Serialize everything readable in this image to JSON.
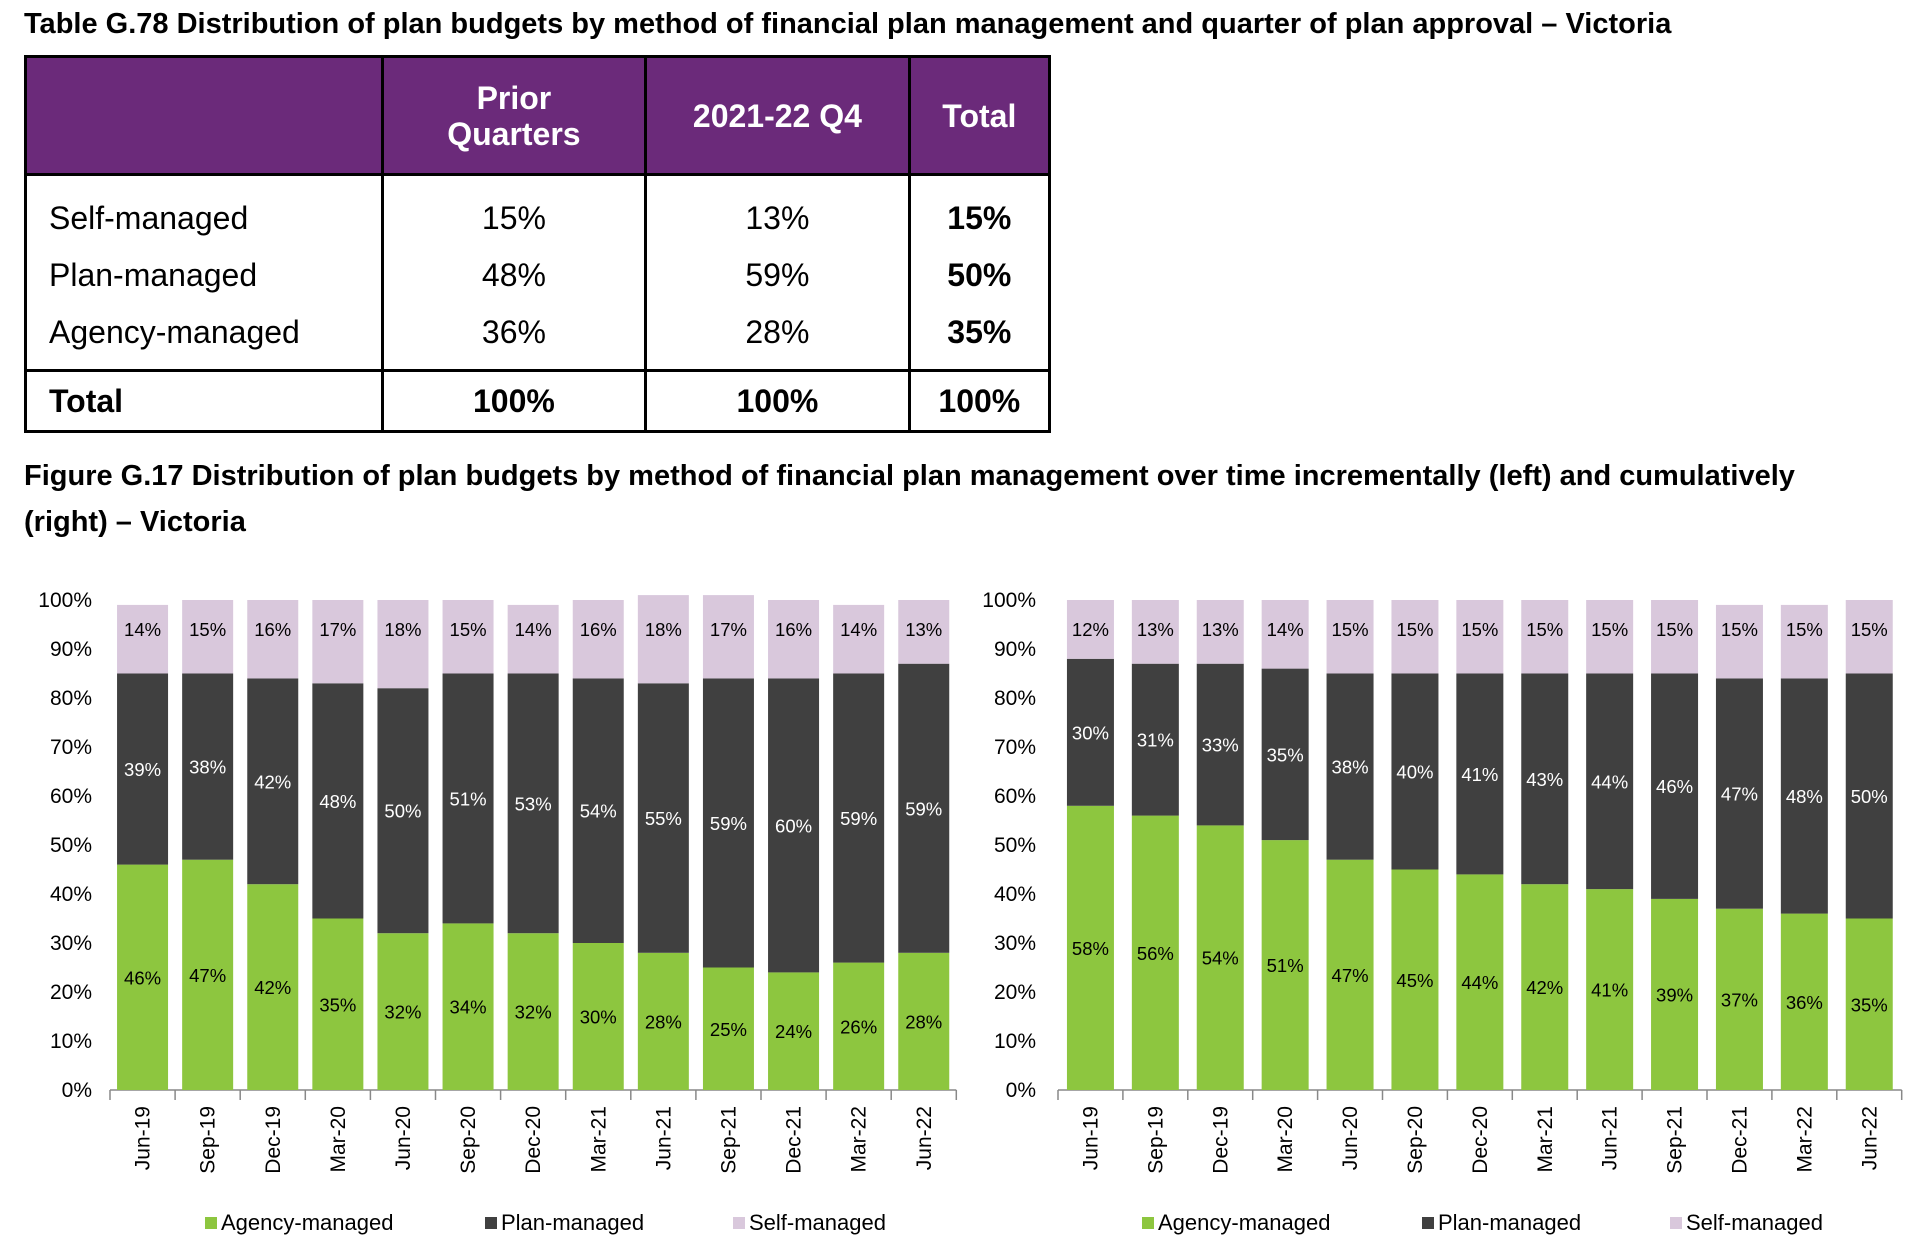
{
  "table": {
    "title": "Table G.78 Distribution of plan budgets by method of financial plan management and quarter of plan approval – Victoria",
    "headers": [
      "",
      "Prior Quarters",
      "2021-22 Q4",
      "Total"
    ],
    "rows": [
      {
        "label": "Self-managed",
        "prior": "15%",
        "q4": "13%",
        "total": "15%"
      },
      {
        "label": "Plan-managed",
        "prior": "48%",
        "q4": "59%",
        "total": "50%"
      },
      {
        "label": "Agency-managed",
        "prior": "36%",
        "q4": "28%",
        "total": "35%"
      }
    ],
    "total_row": {
      "label": "Total",
      "prior": "100%",
      "q4": "100%",
      "total": "100%"
    }
  },
  "figure": {
    "title": "Figure G.17 Distribution of plan budgets by method of financial plan management over time incrementally (left) and cumulatively (right) – Victoria"
  },
  "colors": {
    "header_purple": "#6b2a7a",
    "agency": "#8dc63f",
    "plan": "#404040",
    "self": "#d9c8dc"
  },
  "chart_data": [
    {
      "type": "bar",
      "stacked": true,
      "categories": [
        "Jun-19",
        "Sep-19",
        "Dec-19",
        "Mar-20",
        "Jun-20",
        "Sep-20",
        "Dec-20",
        "Mar-21",
        "Jun-21",
        "Sep-21",
        "Dec-21",
        "Mar-22",
        "Jun-22"
      ],
      "series": [
        {
          "name": "Agency-managed",
          "color": "#8dc63f",
          "values": [
            46,
            47,
            42,
            35,
            32,
            34,
            32,
            30,
            28,
            25,
            24,
            26,
            28
          ]
        },
        {
          "name": "Plan-managed",
          "color": "#404040",
          "values": [
            39,
            38,
            42,
            48,
            50,
            51,
            53,
            54,
            55,
            59,
            60,
            59,
            59
          ]
        },
        {
          "name": "Self-managed",
          "color": "#d9c8dc",
          "values": [
            14,
            15,
            16,
            17,
            18,
            15,
            14,
            16,
            18,
            17,
            16,
            14,
            13
          ]
        }
      ],
      "ylim": [
        0,
        100
      ],
      "yticks": [
        "0%",
        "10%",
        "20%",
        "30%",
        "40%",
        "50%",
        "60%",
        "70%",
        "80%",
        "90%",
        "100%"
      ],
      "legend": "bottom",
      "grid": false
    },
    {
      "type": "bar",
      "stacked": true,
      "categories": [
        "Jun-19",
        "Sep-19",
        "Dec-19",
        "Mar-20",
        "Jun-20",
        "Sep-20",
        "Dec-20",
        "Mar-21",
        "Jun-21",
        "Sep-21",
        "Dec-21",
        "Mar-22",
        "Jun-22"
      ],
      "series": [
        {
          "name": "Agency-managed",
          "color": "#8dc63f",
          "values": [
            58,
            56,
            54,
            51,
            47,
            45,
            44,
            42,
            41,
            39,
            37,
            36,
            35
          ]
        },
        {
          "name": "Plan-managed",
          "color": "#404040",
          "values": [
            30,
            31,
            33,
            35,
            38,
            40,
            41,
            43,
            44,
            46,
            47,
            48,
            50
          ]
        },
        {
          "name": "Self-managed",
          "color": "#d9c8dc",
          "values": [
            12,
            13,
            13,
            14,
            15,
            15,
            15,
            15,
            15,
            15,
            15,
            15,
            15
          ]
        }
      ],
      "ylim": [
        0,
        100
      ],
      "yticks": [
        "0%",
        "10%",
        "20%",
        "30%",
        "40%",
        "50%",
        "60%",
        "70%",
        "80%",
        "90%",
        "100%"
      ],
      "legend": "bottom",
      "grid": false
    }
  ]
}
